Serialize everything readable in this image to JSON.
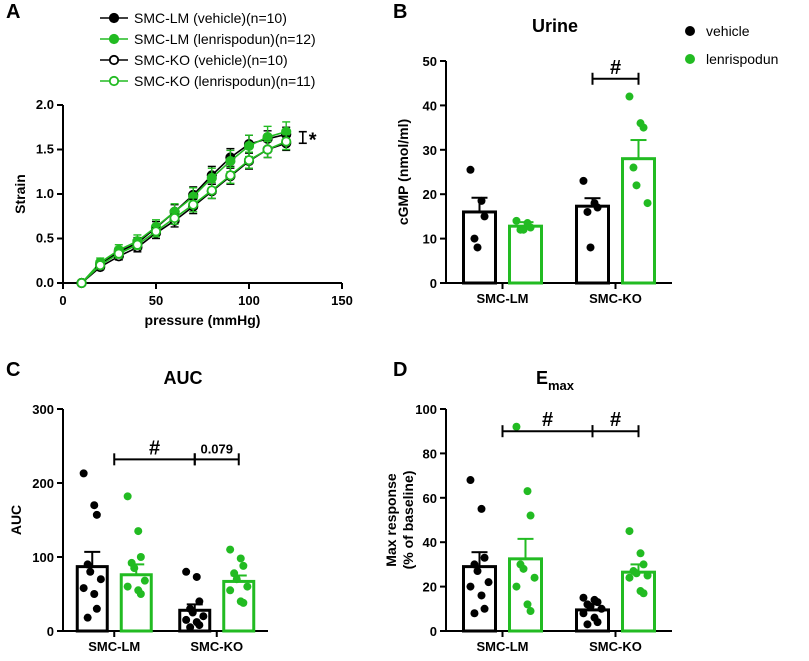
{
  "colors": {
    "vehicle": "#000000",
    "lenrispodun": "#22bb22"
  },
  "panels": {
    "A": {
      "letter": "A"
    },
    "B": {
      "letter": "B"
    },
    "C": {
      "letter": "C"
    },
    "D": {
      "letter": "D"
    }
  },
  "chart_data": [
    {
      "id": "A",
      "type": "line",
      "title": "",
      "xlabel": "pressure (mmHg)",
      "ylabel": "Strain",
      "xlim": [
        0,
        150
      ],
      "ylim": [
        0,
        2.0
      ],
      "xticks": [
        0,
        50,
        100,
        150
      ],
      "yticks": [
        0.0,
        0.5,
        1.0,
        1.5,
        2.0
      ],
      "ytick_labels": [
        "0.0",
        "0.5",
        "1.0",
        "1.5",
        "2.0"
      ],
      "x": [
        10,
        20,
        30,
        40,
        50,
        60,
        70,
        80,
        90,
        100,
        110,
        120
      ],
      "series": [
        {
          "name": "SMC-LM (vehicle)(n=10)",
          "color": "#000000",
          "marker": "filled",
          "values": [
            0.0,
            0.21,
            0.35,
            0.45,
            0.62,
            0.8,
            0.99,
            1.21,
            1.41,
            1.56,
            1.62,
            1.67
          ],
          "errors": [
            0.0,
            0.04,
            0.05,
            0.06,
            0.07,
            0.08,
            0.09,
            0.1,
            0.1,
            0.1,
            0.09,
            0.08
          ]
        },
        {
          "name": "SMC-LM (lenrispodun)(n=12)",
          "color": "#22bb22",
          "marker": "filled",
          "values": [
            0.0,
            0.23,
            0.37,
            0.47,
            0.63,
            0.8,
            0.97,
            1.18,
            1.37,
            1.54,
            1.64,
            1.7
          ],
          "errors": [
            0.0,
            0.05,
            0.06,
            0.07,
            0.08,
            0.09,
            0.1,
            0.11,
            0.12,
            0.12,
            0.12,
            0.11
          ]
        },
        {
          "name": "SMC-KO (vehicle)(n=10)",
          "color": "#000000",
          "marker": "open",
          "values": [
            0.0,
            0.18,
            0.3,
            0.4,
            0.56,
            0.7,
            0.86,
            1.03,
            1.2,
            1.37,
            1.5,
            1.57
          ],
          "errors": [
            0.0,
            0.03,
            0.04,
            0.05,
            0.06,
            0.07,
            0.08,
            0.08,
            0.09,
            0.09,
            0.09,
            0.08
          ]
        },
        {
          "name": "SMC-KO (lenrispodun)(n=11)",
          "color": "#22bb22",
          "marker": "open",
          "values": [
            0.0,
            0.2,
            0.33,
            0.43,
            0.58,
            0.73,
            0.88,
            1.04,
            1.21,
            1.38,
            1.5,
            1.59
          ],
          "errors": [
            0.0,
            0.04,
            0.05,
            0.05,
            0.06,
            0.07,
            0.08,
            0.09,
            0.09,
            0.09,
            0.09,
            0.09
          ]
        }
      ],
      "annotations": [
        {
          "text": "*",
          "between_y": [
            1.57,
            1.7
          ],
          "at_x": 130
        }
      ]
    },
    {
      "id": "B",
      "type": "bar",
      "title": "Urine",
      "xlabel": "",
      "ylabel": "cGMP (nmol/ml)",
      "ylim": [
        0,
        50
      ],
      "yticks": [
        0,
        10,
        20,
        30,
        40,
        50
      ],
      "categories": [
        "SMC-LM",
        "SMC-KO"
      ],
      "legend": [
        "vehicle",
        "lenrispodun"
      ],
      "series": [
        {
          "name": "vehicle",
          "color": "#000000",
          "means": [
            16.0,
            17.3
          ],
          "sem": [
            3.2,
            1.8
          ],
          "points": [
            [
              25.5,
              18.5,
              15.0,
              10.0,
              8.0
            ],
            [
              23.0,
              18.0,
              17.0,
              16.0,
              8.0
            ]
          ]
        },
        {
          "name": "lenrispodun",
          "color": "#22bb22",
          "means": [
            12.8,
            28.0
          ],
          "sem": [
            0.9,
            4.2
          ],
          "points": [
            [
              14.0,
              13.5,
              12.5,
              12.0,
              12.0
            ],
            [
              42.0,
              36.0,
              35.0,
              26.0,
              22.0,
              18.0
            ]
          ]
        }
      ],
      "significance": [
        {
          "text": "#",
          "category": 1,
          "y": 46
        }
      ]
    },
    {
      "id": "C",
      "type": "bar",
      "title": "AUC",
      "xlabel": "",
      "ylabel": "AUC",
      "ylim": [
        0,
        300
      ],
      "yticks": [
        0,
        100,
        200,
        300
      ],
      "categories": [
        "SMC-LM",
        "SMC-KO"
      ],
      "series": [
        {
          "name": "vehicle",
          "color": "#000000",
          "means": [
            87,
            28
          ],
          "sem": [
            20,
            8
          ],
          "points": [
            [
              213,
              170,
              157,
              90,
              80,
              70,
              58,
              50,
              30,
              18
            ],
            [
              80,
              73,
              40,
              30,
              25,
              20,
              15,
              12,
              8,
              5
            ]
          ]
        },
        {
          "name": "lenrispodun",
          "color": "#22bb22",
          "means": [
            76,
            67
          ],
          "sem": [
            14,
            8
          ],
          "points": [
            [
              182,
              135,
              100,
              92,
              85,
              68,
              60,
              55,
              50
            ],
            [
              110,
              98,
              88,
              78,
              70,
              60,
              55,
              40,
              38
            ]
          ]
        }
      ],
      "significance": [
        {
          "text": "#",
          "from": "SMC-LM-center",
          "to": "SMC-KO-vehicle",
          "y": 232
        },
        {
          "text": "0.079",
          "from": "SMC-KO-vehicle",
          "to": "SMC-KO-lenrispodun",
          "y": 232
        }
      ]
    },
    {
      "id": "D",
      "type": "bar",
      "title": "E",
      "title_sub": "max",
      "xlabel": "",
      "ylabel": "Max response",
      "ylabel2": "(% of baseline)",
      "ylim": [
        0,
        100
      ],
      "yticks": [
        0,
        20,
        40,
        60,
        80,
        100
      ],
      "categories": [
        "SMC-LM",
        "SMC-KO"
      ],
      "series": [
        {
          "name": "vehicle",
          "color": "#000000",
          "means": [
            29,
            9.5
          ],
          "sem": [
            6.5,
            2.5
          ],
          "points": [
            [
              68,
              55,
              33,
              30,
              27,
              22,
              20,
              16,
              10,
              8
            ],
            [
              15,
              14,
              13,
              12,
              11,
              10,
              8,
              6,
              4,
              3
            ]
          ]
        },
        {
          "name": "lenrispodun",
          "color": "#22bb22",
          "means": [
            32.5,
            26.5
          ],
          "sem": [
            9,
            3.5
          ],
          "points": [
            [
              92,
              63,
              52,
              30,
              28,
              24,
              20,
              12,
              9
            ],
            [
              45,
              35,
              30,
              27,
              26,
              25,
              24,
              18,
              17
            ]
          ]
        }
      ],
      "significance": [
        {
          "text": "#",
          "from": "SMC-LM-center",
          "to": "SMC-KO-vehicle",
          "y": 90
        },
        {
          "text": "#",
          "from": "SMC-KO-vehicle",
          "to": "SMC-KO-lenrispodun",
          "y": 90
        }
      ]
    }
  ]
}
